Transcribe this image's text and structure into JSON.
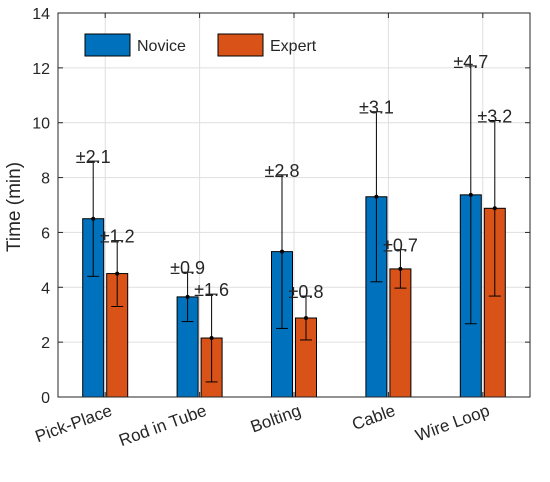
{
  "chart_data": {
    "type": "bar",
    "ylabel": "Time (min)",
    "xlabel": "",
    "ylim": [
      0,
      14
    ],
    "yticks": [
      0,
      2,
      4,
      6,
      8,
      10,
      12,
      14
    ],
    "grid": true,
    "legend_position": "top-left",
    "categories": [
      "Pick-Place",
      "Rod in Tube",
      "Bolting",
      "Cable",
      "Wire Loop"
    ],
    "series": [
      {
        "name": "Novice",
        "color": "#0072BD",
        "values": [
          6.5,
          3.65,
          5.3,
          7.3,
          7.37
        ],
        "errors": [
          2.1,
          0.9,
          2.8,
          3.1,
          4.7
        ],
        "error_labels": [
          "±2.1",
          "±0.9",
          "±2.8",
          "±3.1",
          "±4.7"
        ]
      },
      {
        "name": "Expert",
        "color": "#D95319",
        "values": [
          4.5,
          2.15,
          2.88,
          4.67,
          6.88
        ],
        "errors": [
          1.2,
          1.6,
          0.8,
          0.7,
          3.2
        ],
        "error_labels": [
          "±1.2",
          "±1.6",
          "±0.8",
          "±0.7",
          "±3.2"
        ]
      }
    ]
  }
}
